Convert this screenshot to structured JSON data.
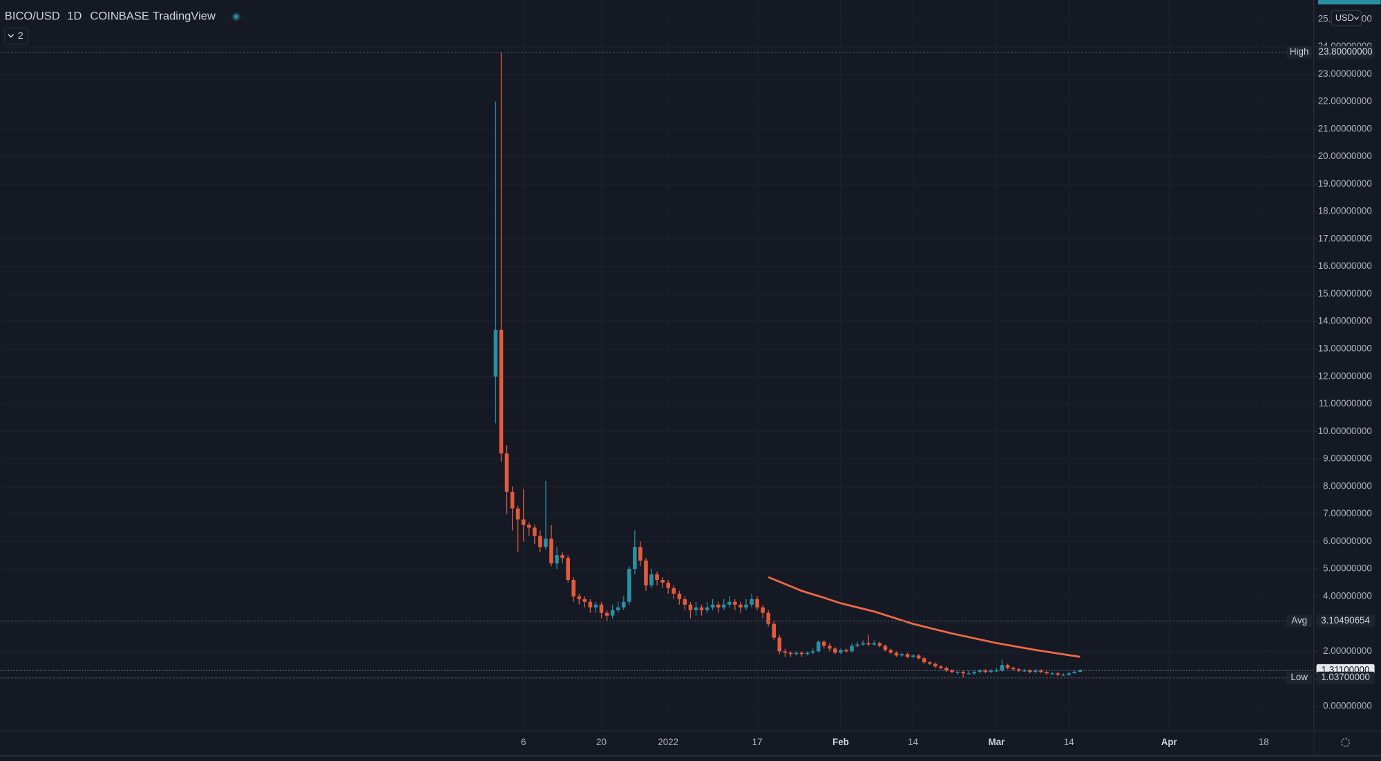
{
  "header": {
    "symbol": "BICO/USD",
    "interval": "1D",
    "exchange": "COINBASE",
    "source": "TradingView",
    "indicators": "2"
  },
  "chart_data": {
    "type": "candlestick",
    "currency": "USD",
    "x": [
      "2021-12-01",
      "2021-12-02",
      "2021-12-03",
      "2021-12-04",
      "2021-12-05",
      "2021-12-06",
      "2021-12-07",
      "2021-12-08",
      "2021-12-09",
      "2021-12-10",
      "2021-12-11",
      "2021-12-12",
      "2021-12-13",
      "2021-12-14",
      "2021-12-15",
      "2021-12-16",
      "2021-12-17",
      "2021-12-18",
      "2021-12-19",
      "2021-12-20",
      "2021-12-21",
      "2021-12-22",
      "2021-12-23",
      "2021-12-24",
      "2021-12-25",
      "2021-12-26",
      "2021-12-27",
      "2021-12-28",
      "2021-12-29",
      "2021-12-30",
      "2021-12-31",
      "2022-01-01",
      "2022-01-02",
      "2022-01-03",
      "2022-01-04",
      "2022-01-05",
      "2022-01-06",
      "2022-01-07",
      "2022-01-08",
      "2022-01-09",
      "2022-01-10",
      "2022-01-11",
      "2022-01-12",
      "2022-01-13",
      "2022-01-14",
      "2022-01-15",
      "2022-01-16",
      "2022-01-17",
      "2022-01-18",
      "2022-01-19",
      "2022-01-20",
      "2022-01-21",
      "2022-01-22",
      "2022-01-23",
      "2022-01-24",
      "2022-01-25",
      "2022-01-26",
      "2022-01-27",
      "2022-01-28",
      "2022-01-29",
      "2022-01-30",
      "2022-01-31",
      "2022-02-01",
      "2022-02-02",
      "2022-02-03",
      "2022-02-04",
      "2022-02-05",
      "2022-02-06",
      "2022-02-07",
      "2022-02-08",
      "2022-02-09",
      "2022-02-10",
      "2022-02-11",
      "2022-02-12",
      "2022-02-13",
      "2022-02-14",
      "2022-02-15",
      "2022-02-16",
      "2022-02-17",
      "2022-02-18",
      "2022-02-19",
      "2022-02-20",
      "2022-02-21",
      "2022-02-22",
      "2022-02-23",
      "2022-02-24",
      "2022-02-25",
      "2022-02-26",
      "2022-02-27",
      "2022-02-28",
      "2022-03-01",
      "2022-03-02",
      "2022-03-03",
      "2022-03-04",
      "2022-03-05",
      "2022-03-06",
      "2022-03-07",
      "2022-03-08",
      "2022-03-09",
      "2022-03-10",
      "2022-03-11",
      "2022-03-12",
      "2022-03-13",
      "2022-03-14",
      "2022-03-15",
      "2022-03-16"
    ],
    "series": [
      {
        "up_color": "#2b8fa3",
        "down_color": "#e35b3c",
        "open": [
          12.0,
          13.7,
          9.2,
          7.8,
          7.2,
          6.8,
          6.6,
          6.5,
          6.2,
          5.8,
          6.1,
          5.2,
          5.5,
          5.4,
          4.6,
          4.0,
          3.9,
          3.8,
          3.6,
          3.7,
          3.4,
          3.3,
          3.5,
          3.6,
          3.8,
          5.0,
          5.8,
          5.3,
          4.4,
          4.8,
          4.6,
          4.5,
          4.3,
          4.1,
          3.9,
          3.7,
          3.5,
          3.6,
          3.5,
          3.6,
          3.7,
          3.6,
          3.7,
          3.8,
          3.7,
          3.6,
          3.7,
          3.9,
          3.6,
          3.4,
          3.0,
          2.5,
          2.0,
          1.95,
          1.9,
          1.95,
          1.9,
          1.95,
          2.0,
          2.35,
          2.2,
          2.1,
          1.95,
          2.05,
          2.0,
          2.2,
          2.25,
          2.3,
          2.25,
          2.3,
          2.2,
          2.05,
          1.95,
          1.85,
          1.9,
          1.8,
          1.85,
          1.75,
          1.6,
          1.55,
          1.45,
          1.4,
          1.3,
          1.25,
          1.25,
          1.2,
          1.2,
          1.25,
          1.3,
          1.25,
          1.3,
          1.3,
          1.5,
          1.4,
          1.35,
          1.3,
          1.3,
          1.25,
          1.3,
          1.25,
          1.2,
          1.2,
          1.15,
          1.15,
          1.2,
          1.25
        ],
        "high": [
          22.0,
          23.8,
          9.5,
          8.0,
          7.3,
          7.9,
          6.7,
          6.6,
          6.4,
          8.2,
          6.6,
          5.8,
          5.6,
          5.5,
          4.7,
          4.1,
          4.0,
          3.9,
          3.8,
          3.8,
          3.5,
          3.7,
          3.8,
          4.0,
          5.1,
          6.4,
          6.0,
          5.4,
          5.0,
          4.9,
          4.7,
          4.6,
          4.4,
          4.2,
          4.0,
          3.8,
          3.8,
          3.7,
          3.8,
          3.9,
          3.8,
          3.9,
          4.0,
          3.9,
          3.8,
          3.9,
          4.1,
          4.0,
          3.7,
          3.5,
          3.1,
          2.6,
          2.1,
          2.0,
          2.0,
          2.0,
          2.0,
          2.1,
          2.4,
          2.4,
          2.3,
          2.15,
          2.1,
          2.1,
          2.3,
          2.35,
          2.4,
          2.6,
          2.4,
          2.35,
          2.25,
          2.1,
          2.0,
          1.95,
          1.95,
          1.9,
          1.9,
          1.8,
          1.65,
          1.6,
          1.5,
          1.45,
          1.35,
          1.3,
          1.3,
          1.3,
          1.3,
          1.35,
          1.35,
          1.35,
          1.4,
          1.7,
          1.55,
          1.45,
          1.4,
          1.35,
          1.35,
          1.35,
          1.35,
          1.3,
          1.25,
          1.25,
          1.2,
          1.25,
          1.3,
          1.35
        ],
        "low": [
          10.3,
          8.9,
          7.0,
          6.4,
          5.6,
          6.0,
          6.2,
          5.9,
          5.6,
          5.7,
          5.1,
          5.0,
          5.2,
          4.5,
          3.8,
          3.7,
          3.6,
          3.4,
          3.4,
          3.2,
          3.1,
          3.2,
          3.4,
          3.5,
          3.7,
          4.8,
          5.1,
          4.2,
          4.3,
          4.4,
          4.3,
          4.1,
          3.9,
          3.7,
          3.5,
          3.2,
          3.3,
          3.3,
          3.4,
          3.5,
          3.4,
          3.5,
          3.6,
          3.5,
          3.4,
          3.5,
          3.6,
          3.5,
          3.2,
          2.9,
          2.4,
          1.9,
          1.8,
          1.8,
          1.85,
          1.8,
          1.85,
          1.9,
          1.95,
          2.1,
          2.0,
          1.9,
          1.9,
          1.95,
          1.95,
          2.15,
          2.2,
          2.2,
          2.2,
          2.15,
          2.0,
          1.9,
          1.8,
          1.8,
          1.75,
          1.75,
          1.7,
          1.55,
          1.5,
          1.4,
          1.35,
          1.25,
          1.2,
          1.15,
          1.037,
          1.15,
          1.15,
          1.2,
          1.2,
          1.2,
          1.25,
          1.25,
          1.35,
          1.3,
          1.25,
          1.25,
          1.2,
          1.2,
          1.2,
          1.15,
          1.15,
          1.1,
          1.1,
          1.1,
          1.2,
          1.25
        ],
        "close": [
          13.7,
          9.2,
          7.8,
          7.2,
          6.8,
          6.6,
          6.5,
          6.2,
          5.8,
          6.1,
          5.2,
          5.5,
          5.4,
          4.6,
          4.0,
          3.9,
          3.8,
          3.6,
          3.7,
          3.4,
          3.3,
          3.5,
          3.6,
          3.8,
          5.0,
          5.8,
          5.3,
          4.4,
          4.8,
          4.6,
          4.5,
          4.3,
          4.1,
          3.9,
          3.7,
          3.5,
          3.6,
          3.5,
          3.6,
          3.7,
          3.6,
          3.7,
          3.8,
          3.7,
          3.6,
          3.7,
          3.9,
          3.6,
          3.4,
          3.0,
          2.5,
          2.0,
          1.95,
          1.9,
          1.95,
          1.9,
          1.95,
          2.0,
          2.35,
          2.2,
          2.1,
          1.95,
          2.05,
          2.0,
          2.2,
          2.25,
          2.3,
          2.25,
          2.3,
          2.2,
          2.05,
          1.95,
          1.85,
          1.9,
          1.8,
          1.85,
          1.75,
          1.6,
          1.55,
          1.45,
          1.4,
          1.3,
          1.25,
          1.25,
          1.2,
          1.2,
          1.25,
          1.3,
          1.25,
          1.3,
          1.3,
          1.5,
          1.4,
          1.35,
          1.3,
          1.3,
          1.25,
          1.3,
          1.25,
          1.2,
          1.2,
          1.15,
          1.15,
          1.2,
          1.25,
          1.311
        ]
      },
      {
        "type": "line",
        "color": "#ef6a45",
        "x": [
          "2022-01-19",
          "2022-01-22",
          "2022-01-25",
          "2022-01-29",
          "2022-02-01",
          "2022-02-07",
          "2022-02-14",
          "2022-02-21",
          "2022-03-01",
          "2022-03-08",
          "2022-03-16"
        ],
        "values": [
          4.7,
          4.45,
          4.2,
          3.95,
          3.75,
          3.45,
          3.0,
          2.65,
          2.3,
          2.05,
          1.8
        ]
      }
    ],
    "xlim": [
      "2021-09-03",
      "2022-04-27"
    ],
    "xticks": [
      {
        "value": "2021-12-06",
        "label": "6"
      },
      {
        "value": "2021-12-20",
        "label": "20"
      },
      {
        "value": "2022-01-01",
        "label": "2022"
      },
      {
        "value": "2022-01-17",
        "label": "17"
      },
      {
        "value": "2022-02-01",
        "label": "Feb"
      },
      {
        "value": "2022-02-14",
        "label": "14"
      },
      {
        "value": "2022-03-01",
        "label": "Mar"
      },
      {
        "value": "2022-03-14",
        "label": "14"
      },
      {
        "value": "2022-04-01",
        "label": "Apr"
      },
      {
        "value": "2022-04-18",
        "label": "18"
      }
    ],
    "ylim": [
      -0.9,
      25.7
    ],
    "yticks": [
      {
        "value": 0,
        "label": "0.00000000"
      },
      {
        "value": 1,
        "label": "1.00000000"
      },
      {
        "value": 2,
        "label": "2.00000000"
      },
      {
        "value": 3,
        "label": "3.00000000"
      },
      {
        "value": 4,
        "label": "4.00000000"
      },
      {
        "value": 5,
        "label": "5.00000000"
      },
      {
        "value": 6,
        "label": "6.00000000"
      },
      {
        "value": 7,
        "label": "7.00000000"
      },
      {
        "value": 8,
        "label": "8.00000000"
      },
      {
        "value": 9,
        "label": "9.00000000"
      },
      {
        "value": 10,
        "label": "10.00000000"
      },
      {
        "value": 11,
        "label": "11.00000000"
      },
      {
        "value": 12,
        "label": "12.00000000"
      },
      {
        "value": 13,
        "label": "13.00000000"
      },
      {
        "value": 14,
        "label": "14.00000000"
      },
      {
        "value": 15,
        "label": "15.00000000"
      },
      {
        "value": 16,
        "label": "16.00000000"
      },
      {
        "value": 17,
        "label": "17.00000000"
      },
      {
        "value": 18,
        "label": "18.00000000"
      },
      {
        "value": 19,
        "label": "19.00000000"
      },
      {
        "value": 20,
        "label": "20.00000000"
      },
      {
        "value": 21,
        "label": "21.00000000"
      },
      {
        "value": 22,
        "label": "22.00000000"
      },
      {
        "value": 23,
        "label": "23.00000000"
      },
      {
        "value": 24,
        "label": "24.00000000"
      },
      {
        "value": 25,
        "label": "25.00000000"
      }
    ],
    "grid": true,
    "price_lines": [
      {
        "label": "High",
        "value": 23.8,
        "value_label": "23.80000000"
      },
      {
        "label": "Avg",
        "value": 3.10490654,
        "value_label": "3.10490654"
      },
      {
        "value": 1.311,
        "value_label": "1.31100000",
        "last": true
      },
      {
        "label": "Low",
        "value": 1.037,
        "value_label": "1.03700000"
      }
    ]
  }
}
